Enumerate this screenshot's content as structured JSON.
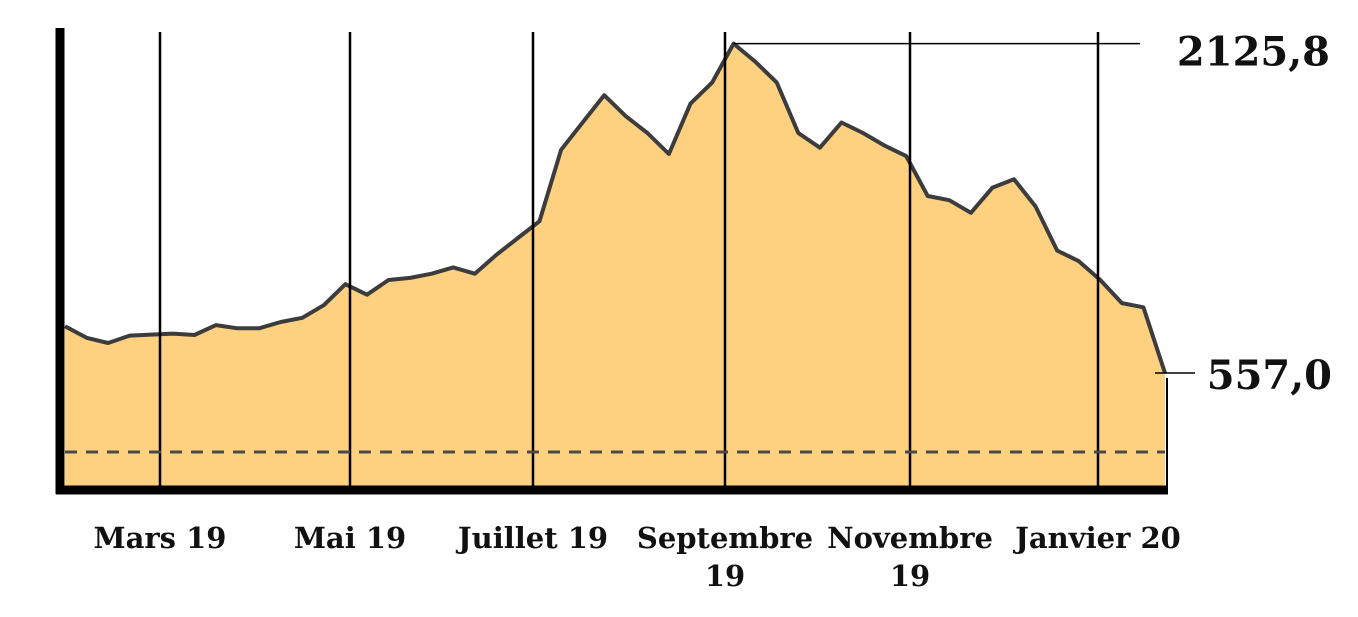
{
  "chart_data": {
    "type": "area",
    "x_tick_labels": [
      [
        "Mars 19"
      ],
      [
        "Mai 19"
      ],
      [
        "Juillet 19"
      ],
      [
        "Septembre",
        "19"
      ],
      [
        "Novembre",
        "19"
      ],
      [
        "Janvier 20"
      ]
    ],
    "annotations": {
      "max_label": "2125,8",
      "last_label": "557,0"
    },
    "ylim": [
      0,
      2200
    ],
    "grid": "vertical lines at each month label",
    "baseline": "dashed horizontal line",
    "colors": {
      "fill": "#fdd17f",
      "line": "#3c3c3c",
      "axis": "#000000",
      "dashed": "#4a4a4a"
    },
    "series": [
      {
        "values": [
          [
            0,
            780
          ],
          [
            1,
            725
          ],
          [
            2,
            700
          ],
          [
            3,
            735
          ],
          [
            4,
            740
          ],
          [
            5,
            745
          ],
          [
            6,
            738
          ],
          [
            7,
            785
          ],
          [
            8,
            770
          ],
          [
            9,
            770
          ],
          [
            10,
            800
          ],
          [
            11,
            820
          ],
          [
            12,
            880
          ],
          [
            13,
            980
          ],
          [
            14,
            930
          ],
          [
            15,
            1000
          ],
          [
            16,
            1010
          ],
          [
            17,
            1030
          ],
          [
            18,
            1060
          ],
          [
            19,
            1030
          ],
          [
            20,
            1120
          ],
          [
            21,
            1200
          ],
          [
            22,
            1280
          ],
          [
            23,
            1620
          ],
          [
            24,
            1750
          ],
          [
            25,
            1880
          ],
          [
            26,
            1780
          ],
          [
            27,
            1700
          ],
          [
            28,
            1600
          ],
          [
            29,
            1840
          ],
          [
            30,
            1940
          ],
          [
            31,
            2125.8
          ],
          [
            32,
            2040
          ],
          [
            33,
            1940
          ],
          [
            34,
            1700
          ],
          [
            35,
            1630
          ],
          [
            36,
            1750
          ],
          [
            37,
            1700
          ],
          [
            38,
            1640
          ],
          [
            39,
            1590
          ],
          [
            40,
            1400
          ],
          [
            41,
            1380
          ],
          [
            42,
            1320
          ],
          [
            43,
            1440
          ],
          [
            44,
            1480
          ],
          [
            45,
            1350
          ],
          [
            46,
            1140
          ],
          [
            47,
            1090
          ],
          [
            48,
            1000
          ],
          [
            49,
            890
          ],
          [
            50,
            870
          ],
          [
            51,
            557.0
          ]
        ]
      }
    ]
  }
}
